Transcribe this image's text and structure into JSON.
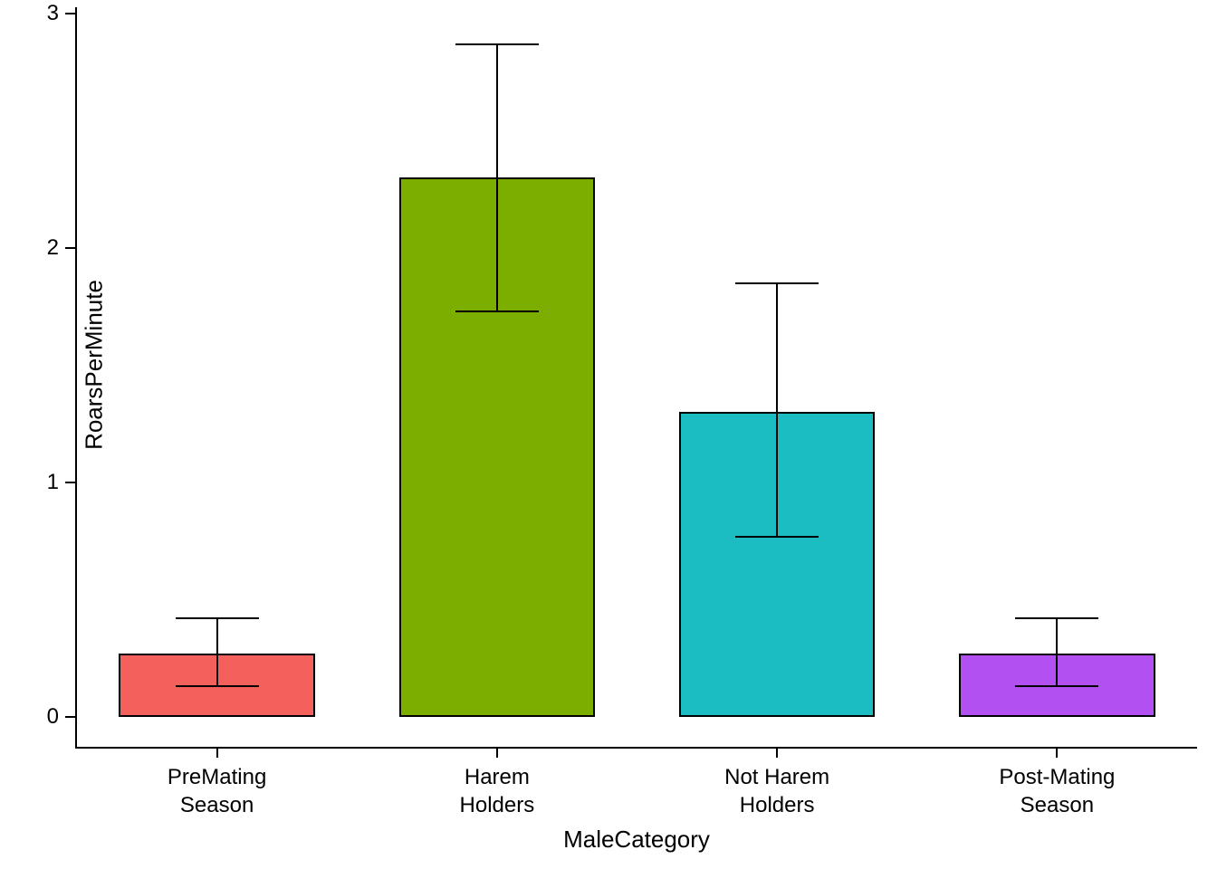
{
  "chart_data": {
    "type": "bar",
    "title": "",
    "xlabel": "MaleCategory",
    "ylabel": "RoarsPerMinute",
    "categories": [
      "PreMating\nSeason",
      "Harem\nHolders",
      "Not Harem\nHolders",
      "Post-Mating\nSeason"
    ],
    "values": [
      0.27,
      2.3,
      1.3,
      0.27
    ],
    "error_low": [
      0.13,
      1.73,
      0.77,
      0.13
    ],
    "error_high": [
      0.42,
      2.87,
      1.85,
      0.42
    ],
    "bar_colors": [
      "#F4615D",
      "#7CAE00",
      "#1CBDC2",
      "#B350F2"
    ],
    "bar_border_color": "#000000",
    "ylim": [
      0,
      3
    ],
    "yticks": [
      "0",
      "1",
      "2",
      "3"
    ],
    "grid": false,
    "legend": "none",
    "background": "#FFFFFF"
  }
}
